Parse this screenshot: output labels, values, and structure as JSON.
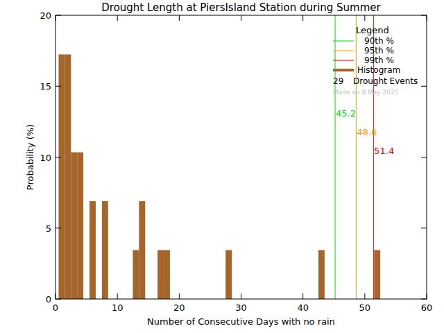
{
  "chart_data": {
    "type": "histogram",
    "title": "Drought Length at PiersIsland Station during Summer",
    "x_label": "Number of Consecutive Days with no rain",
    "y_label": "Probability (%)",
    "bins": [
      0.5,
      1.5,
      2.5,
      3.5,
      4.5,
      5.5,
      6.5,
      7.5,
      8.5,
      9.5,
      10.5,
      11.5,
      12.5,
      13.5,
      14.5,
      15.5,
      16.5,
      17.5,
      18.5,
      19.5,
      20.5,
      21.5,
      22.5,
      23.5,
      24.5,
      25.5,
      26.5,
      27.5,
      28.5,
      29.5,
      30.5,
      31.5,
      32.5,
      33.5,
      34.5,
      35.5,
      36.5,
      37.5,
      38.5,
      39.5,
      40.5,
      41.5,
      42.5,
      43.5,
      44.5,
      45.5,
      46.5,
      47.5,
      48.5,
      49.5,
      50.5,
      51.5,
      52.5
    ],
    "values": [
      17.24,
      17.24,
      10.34,
      10.34,
      0,
      6.9,
      0,
      6.9,
      0,
      0,
      0,
      0,
      3.45,
      6.9,
      0,
      0,
      3.45,
      3.45,
      0,
      0,
      0,
      0,
      0,
      0,
      0,
      0,
      0,
      3.45,
      0,
      0,
      0,
      0,
      0,
      0,
      0,
      0,
      0,
      0,
      0,
      0,
      0,
      0,
      3.45,
      0,
      0,
      0,
      0,
      0,
      0,
      0,
      0,
      3.45
    ],
    "color": "#a6652b",
    "xlim": [
      0,
      60
    ],
    "ylim": [
      0,
      20
    ],
    "xticks": [
      0,
      10,
      20,
      30,
      40,
      50,
      60
    ],
    "yticks": [
      0,
      5,
      10,
      15,
      20
    ],
    "legend": "top-right",
    "legend_title": "Legend",
    "series_name": "Histogram",
    "percentiles": [
      {
        "name": "90th %",
        "value": 45.2,
        "color": "#00dd00"
      },
      {
        "name": "95th %",
        "value": 48.6,
        "color": "#ff9900"
      },
      {
        "name": "99th %",
        "value": 51.4,
        "color": "#dd0000"
      }
    ],
    "event_count": 29,
    "event_label": "Drought Events",
    "note": "Made on 8 May 2025"
  }
}
